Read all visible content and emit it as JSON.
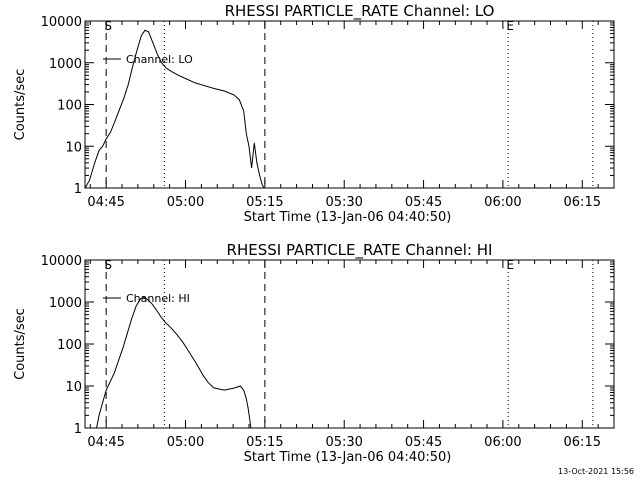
{
  "footer_timestamp": "13-Oct-2021 15:56",
  "chart_data": [
    {
      "type": "line",
      "title": "RHESSI PARTICLE_RATE Channel: LO",
      "xlabel": "Start Time (13-Jan-06 04:40:50)",
      "ylabel": "Counts/sec",
      "yscale": "log",
      "ylim": [
        1,
        10000
      ],
      "x_range": [
        "04:41",
        "06:21"
      ],
      "x_ticks": [
        "04:45",
        "05:00",
        "05:15",
        "05:30",
        "05:45",
        "06:00",
        "06:15"
      ],
      "y_ticks": [
        "1",
        "10",
        "100",
        "1000",
        "10000"
      ],
      "legend": "Channel: LO",
      "legend_position": "top-left",
      "markers": [
        {
          "label": "S",
          "time": "04:45",
          "style": "dashed"
        },
        {
          "label": "",
          "time": "05:15",
          "style": "dashed"
        },
        {
          "label": "",
          "time": "04:56",
          "style": "dotted"
        },
        {
          "label": "E",
          "time": "06:01",
          "style": "dotted"
        },
        {
          "label": "",
          "time": "06:17",
          "style": "dotted"
        }
      ],
      "series": [
        {
          "x": [
            "04:41:00",
            "04:41:50",
            "04:42:50",
            "04:43:40",
            "04:44:20",
            "04:45:00",
            "04:45:50",
            "04:46:40",
            "04:47:30",
            "04:48:20",
            "04:49:10",
            "04:50:00",
            "04:50:50",
            "04:51:40",
            "04:52:20",
            "04:53:00",
            "04:53:50",
            "04:54:40",
            "04:55:30",
            "04:56:20",
            "04:57:20",
            "04:58:40",
            "05:00:00",
            "05:01:50",
            "05:03:40",
            "05:05:30",
            "05:07:20",
            "05:09:10",
            "05:10:10",
            "05:11:00",
            "05:11:30",
            "05:12:00",
            "05:12:30",
            "05:13:00",
            "05:13:30",
            "05:14:00",
            "05:14:30",
            "05:14:50"
          ],
          "y": [
            1,
            1.5,
            4,
            8,
            10,
            15,
            22,
            40,
            75,
            140,
            300,
            800,
            2000,
            4500,
            6000,
            5500,
            3000,
            1600,
            1000,
            750,
            620,
            500,
            420,
            330,
            280,
            240,
            210,
            170,
            130,
            70,
            20,
            10,
            3,
            12,
            4,
            2,
            1.2,
            1
          ]
        }
      ]
    },
    {
      "type": "line",
      "title": "RHESSI PARTICLE_RATE Channel: HI",
      "xlabel": "Start Time (13-Jan-06 04:40:50)",
      "ylabel": "Counts/sec",
      "yscale": "log",
      "ylim": [
        1,
        10000
      ],
      "x_range": [
        "04:41",
        "06:21"
      ],
      "x_ticks": [
        "04:45",
        "05:00",
        "05:15",
        "05:30",
        "05:45",
        "06:00",
        "06:15"
      ],
      "y_ticks": [
        "1",
        "10",
        "100",
        "1000",
        "10000"
      ],
      "legend": "Channel: HI",
      "legend_position": "top-left",
      "markers": [
        {
          "label": "S",
          "time": "04:45",
          "style": "dashed"
        },
        {
          "label": "",
          "time": "05:15",
          "style": "dashed"
        },
        {
          "label": "",
          "time": "04:56",
          "style": "dotted"
        },
        {
          "label": "E",
          "time": "06:01",
          "style": "dotted"
        },
        {
          "label": "",
          "time": "06:17",
          "style": "dotted"
        }
      ],
      "series": [
        {
          "x": [
            "04:43:10",
            "04:43:40",
            "04:44:20",
            "04:45:00",
            "04:45:40",
            "04:46:30",
            "04:47:20",
            "04:48:10",
            "04:49:00",
            "04:49:50",
            "04:50:40",
            "04:51:30",
            "04:52:10",
            "04:52:50",
            "04:53:40",
            "04:54:30",
            "04:55:20",
            "04:56:10",
            "04:57:10",
            "04:58:20",
            "04:59:30",
            "05:00:40",
            "05:02:00",
            "05:03:20",
            "05:04:20",
            "05:05:20",
            "05:06:20",
            "05:07:20",
            "05:08:20",
            "05:09:20",
            "05:10:20",
            "05:11:00",
            "05:11:30",
            "05:11:50",
            "05:12:10",
            "05:12:20"
          ],
          "y": [
            1,
            2,
            4,
            8,
            12,
            20,
            40,
            80,
            180,
            400,
            800,
            1200,
            1300,
            1150,
            900,
            650,
            450,
            330,
            250,
            170,
            110,
            65,
            35,
            18,
            12,
            9,
            8.5,
            8,
            8.5,
            9,
            10,
            8,
            5,
            3,
            1.5,
            1
          ]
        }
      ]
    }
  ]
}
